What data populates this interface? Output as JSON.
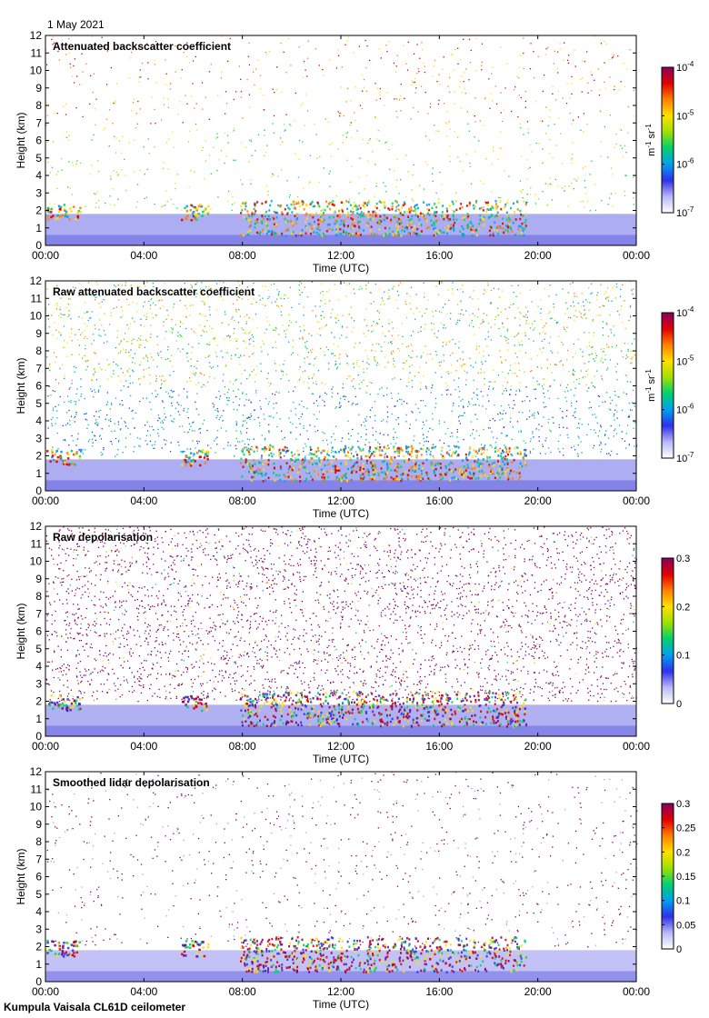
{
  "date": "1 May 2021",
  "footer": "Kumpula Vaisala CL61D ceilometer",
  "colors": {
    "colormap": [
      "#ffffff",
      "#b8b8f8",
      "#3030e8",
      "#00a0f0",
      "#00d070",
      "#a0e000",
      "#ffe000",
      "#ff8000",
      "#e00000",
      "#880060"
    ]
  },
  "chart_data": [
    {
      "type": "heatmap",
      "title": "Attenuated backscatter coefficient",
      "xlabel": "Time (UTC)",
      "ylabel": "Height (km)",
      "x_ticks": [
        "00:00",
        "04:00",
        "08:00",
        "12:00",
        "16:00",
        "20:00",
        "00:00"
      ],
      "y_ticks": [
        "0",
        "1",
        "2",
        "3",
        "4",
        "5",
        "6",
        "7",
        "8",
        "9",
        "10",
        "11",
        "12"
      ],
      "xlim_hours": [
        0,
        24
      ],
      "ylim_km": [
        0,
        12
      ],
      "colorbar": {
        "scale": "log",
        "range": [
          1e-07,
          0.0001
        ],
        "ticks": [
          {
            "base": "10",
            "exp": "-4"
          },
          {
            "base": "10",
            "exp": "-5"
          },
          {
            "base": "10",
            "exp": "-6"
          },
          {
            "base": "10",
            "exp": "-7"
          }
        ],
        "unit": {
          "m": "m",
          "m_exp": "-1",
          "sr": "sr",
          "sr_exp": "-1"
        }
      }
    },
    {
      "type": "heatmap",
      "title": "Raw attenuated backscatter coefficient",
      "xlabel": "Time (UTC)",
      "ylabel": "Height (km)",
      "x_ticks": [
        "00:00",
        "04:00",
        "08:00",
        "12:00",
        "16:00",
        "20:00",
        "00:00"
      ],
      "y_ticks": [
        "0",
        "1",
        "2",
        "3",
        "4",
        "5",
        "6",
        "7",
        "8",
        "9",
        "10",
        "11",
        "12"
      ],
      "xlim_hours": [
        0,
        24
      ],
      "ylim_km": [
        0,
        12
      ],
      "colorbar": {
        "scale": "log",
        "range": [
          1e-07,
          0.0001
        ],
        "ticks": [
          {
            "base": "10",
            "exp": "-4"
          },
          {
            "base": "10",
            "exp": "-5"
          },
          {
            "base": "10",
            "exp": "-6"
          },
          {
            "base": "10",
            "exp": "-7"
          }
        ],
        "unit": {
          "m": "m",
          "m_exp": "-1",
          "sr": "sr",
          "sr_exp": "-1"
        }
      }
    },
    {
      "type": "heatmap",
      "title": "Raw depolarisation",
      "xlabel": "Time (UTC)",
      "ylabel": "Height (km)",
      "x_ticks": [
        "00:00",
        "04:00",
        "08:00",
        "12:00",
        "16:00",
        "20:00",
        "00:00"
      ],
      "y_ticks": [
        "0",
        "1",
        "2",
        "3",
        "4",
        "5",
        "6",
        "7",
        "8",
        "9",
        "10",
        "11",
        "12"
      ],
      "xlim_hours": [
        0,
        24
      ],
      "ylim_km": [
        0,
        12
      ],
      "colorbar": {
        "scale": "linear",
        "range": [
          0,
          0.3
        ],
        "ticks": [
          "0.3",
          "0.2",
          "0.1",
          "0"
        ]
      }
    },
    {
      "type": "heatmap",
      "title": "Smoothed lidar depolarisation",
      "xlabel": "Time (UTC)",
      "ylabel": "Height (km)",
      "x_ticks": [
        "00:00",
        "04:00",
        "08:00",
        "12:00",
        "16:00",
        "20:00",
        "00:00"
      ],
      "y_ticks": [
        "0",
        "1",
        "2",
        "3",
        "4",
        "5",
        "6",
        "7",
        "8",
        "9",
        "10",
        "11",
        "12"
      ],
      "xlim_hours": [
        0,
        24
      ],
      "ylim_km": [
        0,
        12
      ],
      "colorbar": {
        "scale": "linear",
        "range": [
          0,
          0.3
        ],
        "ticks": [
          "0.3",
          "0.25",
          "0.2",
          "0.15",
          "0.1",
          "0.05",
          "0"
        ]
      }
    }
  ]
}
